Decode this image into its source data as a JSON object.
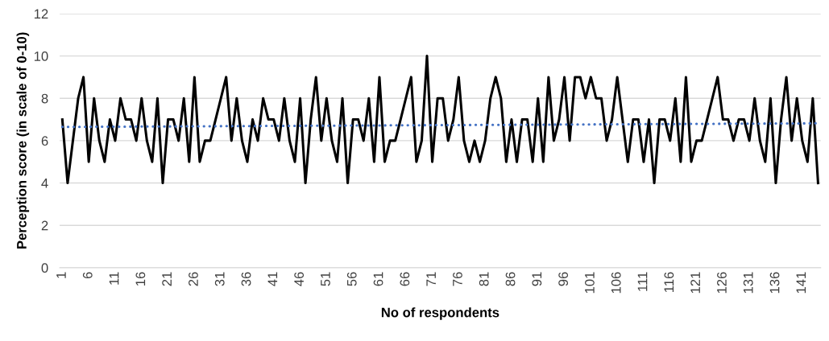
{
  "chart_data": {
    "type": "line",
    "xlabel": "No of respondents",
    "ylabel": "Perception score (in scale of 0-10)",
    "categories": [
      "1",
      null,
      null,
      null,
      null,
      "6",
      null,
      null,
      null,
      null,
      "11",
      null,
      null,
      null,
      null,
      "16",
      null,
      null,
      null,
      null,
      "21",
      null,
      null,
      null,
      null,
      "26",
      null,
      null,
      null,
      null,
      "31",
      null,
      null,
      null,
      null,
      "36",
      null,
      null,
      null,
      null,
      "41",
      null,
      null,
      null,
      null,
      "46",
      null,
      null,
      null,
      null,
      "51",
      null,
      null,
      null,
      null,
      "56",
      null,
      null,
      null,
      null,
      "61",
      null,
      null,
      null,
      null,
      "66",
      null,
      null,
      null,
      null,
      "71",
      null,
      null,
      null,
      null,
      "76",
      null,
      null,
      null,
      null,
      "81",
      null,
      null,
      null,
      null,
      "86",
      null,
      null,
      null,
      null,
      "91",
      null,
      null,
      null,
      null,
      "96",
      null,
      null,
      null,
      null,
      "101",
      null,
      null,
      null,
      null,
      "106",
      null,
      null,
      null,
      null,
      "111",
      null,
      null,
      null,
      null,
      "116",
      null,
      null,
      null,
      null,
      "121",
      null,
      null,
      null,
      null,
      "126",
      null,
      null,
      null,
      null,
      "131",
      null,
      null,
      null,
      null,
      "136",
      null,
      null,
      null,
      null,
      "141",
      null,
      null,
      null
    ],
    "series": [
      {
        "color": "#000000",
        "line_style": "solid",
        "values": [
          7,
          4,
          6,
          8,
          9,
          5,
          8,
          6,
          5,
          7,
          6,
          8,
          7,
          7,
          6,
          8,
          6,
          5,
          8,
          4,
          7,
          7,
          6,
          8,
          5,
          9,
          5,
          6,
          6,
          7,
          8,
          9,
          6,
          8,
          6,
          5,
          7,
          6,
          8,
          7,
          7,
          6,
          8,
          6,
          5,
          8,
          4,
          7,
          9,
          6,
          8,
          6,
          5,
          8,
          4,
          7,
          7,
          6,
          8,
          5,
          9,
          5,
          6,
          6,
          7,
          8,
          9,
          5,
          6,
          10,
          5,
          8,
          8,
          6,
          7,
          9,
          6,
          5,
          6,
          5,
          6,
          8,
          9,
          8,
          5,
          7,
          5,
          7,
          7,
          5,
          8,
          5,
          9,
          6,
          7,
          9,
          6,
          9,
          9,
          8,
          9,
          8,
          8,
          6,
          7,
          9,
          7,
          5,
          7,
          7,
          5,
          7,
          4,
          7,
          7,
          6,
          8,
          5,
          9,
          5,
          6,
          6,
          7,
          8,
          9,
          7,
          7,
          6,
          7,
          7,
          6,
          8,
          6,
          5,
          8,
          4,
          7,
          9,
          6,
          8,
          6,
          5,
          8,
          4
        ]
      },
      {
        "type": "line",
        "color": "#4472c4",
        "line_style": "dotted",
        "values": [
          6.65,
          null,
          null,
          null,
          null,
          null,
          null,
          null,
          null,
          null,
          null,
          null,
          null,
          null,
          null,
          null,
          null,
          null,
          null,
          null,
          null,
          null,
          null,
          null,
          null,
          null,
          null,
          null,
          null,
          null,
          null,
          null,
          null,
          null,
          null,
          null,
          null,
          null,
          null,
          null,
          null,
          null,
          null,
          null,
          null,
          null,
          null,
          null,
          null,
          null,
          null,
          null,
          null,
          null,
          null,
          null,
          null,
          null,
          null,
          null,
          null,
          null,
          null,
          null,
          null,
          null,
          null,
          null,
          null,
          null,
          null,
          null,
          null,
          null,
          null,
          null,
          null,
          null,
          null,
          null,
          null,
          null,
          null,
          null,
          null,
          null,
          null,
          null,
          null,
          null,
          null,
          null,
          null,
          null,
          null,
          null,
          null,
          null,
          null,
          null,
          null,
          null,
          null,
          null,
          null,
          null,
          null,
          null,
          null,
          null,
          null,
          null,
          null,
          null,
          null,
          null,
          null,
          null,
          null,
          null,
          null,
          null,
          null,
          null,
          null,
          null,
          null,
          null,
          null,
          null,
          null,
          null,
          null,
          null,
          null,
          null,
          null,
          null,
          null,
          null,
          null,
          null,
          null,
          6.82
        ]
      }
    ],
    "ylim": [
      0,
      12
    ],
    "yticks": [
      0,
      2,
      4,
      6,
      8,
      10,
      12
    ],
    "grid": "y",
    "legend": false,
    "marker": "none"
  }
}
